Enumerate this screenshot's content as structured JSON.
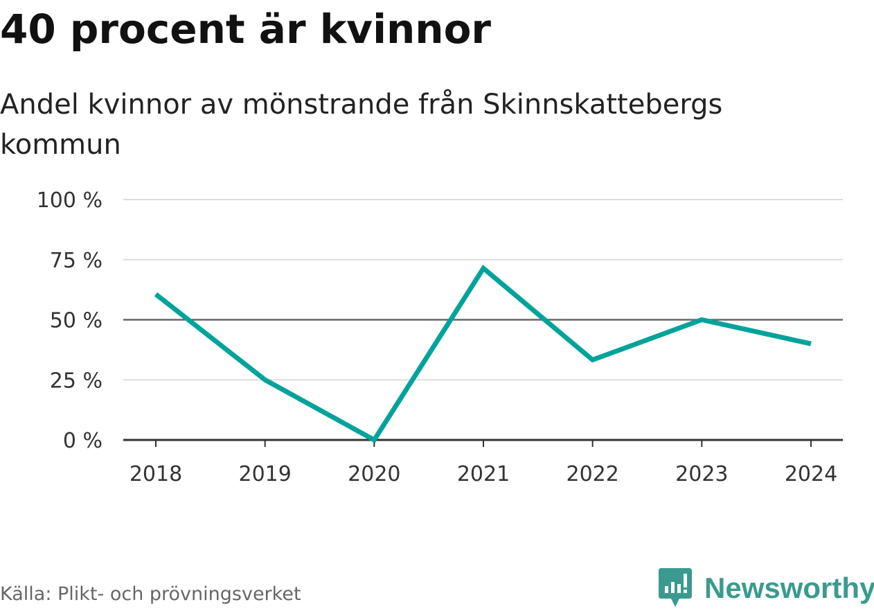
{
  "header": {
    "title": "40 procent är kvinnor",
    "subtitle": "Andel kvinnor av mönstrande från Skinnskattebergs kommun"
  },
  "footer": {
    "source": "Källa: Plikt- och prövningsverket",
    "logo_text": "Newsworthy"
  },
  "colors": {
    "line": "#00a39a",
    "grid": "#dddddd",
    "reference": "#666666",
    "axis": "#333333",
    "brand": "#3a9a8f"
  },
  "chart_data": {
    "type": "line",
    "title": "40 procent är kvinnor",
    "subtitle": "Andel kvinnor av mönstrande från Skinnskattebergs kommun",
    "xlabel": "",
    "ylabel": "",
    "x": [
      "2018",
      "2019",
      "2020",
      "2021",
      "2022",
      "2023",
      "2024"
    ],
    "series": [
      {
        "name": "Andel kvinnor",
        "values": [
          60.6,
          25,
          0,
          71.4,
          33.3,
          50,
          40
        ]
      }
    ],
    "ylim": [
      0,
      100
    ],
    "yticks": [
      0,
      25,
      50,
      75,
      100
    ],
    "ytick_labels": [
      "0 %",
      "25 %",
      "50 %",
      "75 %",
      "100 %"
    ],
    "reference_line": 50,
    "grid": true,
    "legend": "none"
  }
}
